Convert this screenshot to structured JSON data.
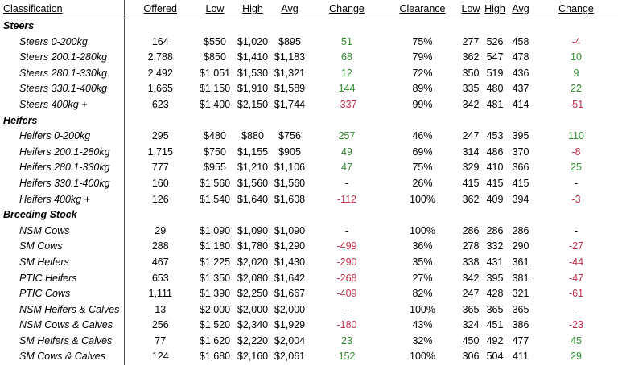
{
  "headers": {
    "classification": "Classification",
    "offered": "Offered",
    "low": "Low",
    "high": "High",
    "avg": "Avg",
    "change": "Change",
    "clearance": "Clearance",
    "low2": "Low",
    "high2": "High",
    "avg2": "Avg",
    "change2": "Change"
  },
  "groups": [
    {
      "name": "Steers",
      "rows": [
        {
          "cls": "Steers 0-200kg",
          "offered": "164",
          "low": "$550",
          "high": "$1,020",
          "avg": "$895",
          "change": "51",
          "change_dir": "up",
          "clearance": "75%",
          "low2": "277",
          "high2": "526",
          "avg2": "458",
          "change2": "-4",
          "change2_dir": "down"
        },
        {
          "cls": "Steers 200.1-280kg",
          "offered": "2,788",
          "low": "$850",
          "high": "$1,410",
          "avg": "$1,183",
          "change": "68",
          "change_dir": "up",
          "clearance": "79%",
          "low2": "362",
          "high2": "547",
          "avg2": "478",
          "change2": "10",
          "change2_dir": "up"
        },
        {
          "cls": "Steers 280.1-330kg",
          "offered": "2,492",
          "low": "$1,051",
          "high": "$1,530",
          "avg": "$1,321",
          "change": "12",
          "change_dir": "up",
          "clearance": "72%",
          "low2": "350",
          "high2": "519",
          "avg2": "436",
          "change2": "9",
          "change2_dir": "up"
        },
        {
          "cls": "Steers 330.1-400kg",
          "offered": "1,665",
          "low": "$1,150",
          "high": "$1,910",
          "avg": "$1,589",
          "change": "144",
          "change_dir": "up",
          "clearance": "89%",
          "low2": "335",
          "high2": "480",
          "avg2": "437",
          "change2": "22",
          "change2_dir": "up"
        },
        {
          "cls": "Steers 400kg +",
          "offered": "623",
          "low": "$1,400",
          "high": "$2,150",
          "avg": "$1,744",
          "change": "-337",
          "change_dir": "down",
          "clearance": "99%",
          "low2": "342",
          "high2": "481",
          "avg2": "414",
          "change2": "-51",
          "change2_dir": "down"
        }
      ]
    },
    {
      "name": "Heifers",
      "rows": [
        {
          "cls": "Heifers 0-200kg",
          "offered": "295",
          "low": "$480",
          "high": "$880",
          "avg": "$756",
          "change": "257",
          "change_dir": "up",
          "clearance": "46%",
          "low2": "247",
          "high2": "453",
          "avg2": "395",
          "change2": "110",
          "change2_dir": "up"
        },
        {
          "cls": "Heifers 200.1-280kg",
          "offered": "1,715",
          "low": "$750",
          "high": "$1,155",
          "avg": "$905",
          "change": "49",
          "change_dir": "up",
          "clearance": "69%",
          "low2": "314",
          "high2": "486",
          "avg2": "370",
          "change2": "-8",
          "change2_dir": "down"
        },
        {
          "cls": "Heifers 280.1-330kg",
          "offered": "777",
          "low": "$955",
          "high": "$1,210",
          "avg": "$1,106",
          "change": "47",
          "change_dir": "up",
          "clearance": "75%",
          "low2": "329",
          "high2": "410",
          "avg2": "366",
          "change2": "25",
          "change2_dir": "up"
        },
        {
          "cls": "Heifers 330.1-400kg",
          "offered": "160",
          "low": "$1,560",
          "high": "$1,560",
          "avg": "$1,560",
          "change": "-",
          "change_dir": "none",
          "clearance": "26%",
          "low2": "415",
          "high2": "415",
          "avg2": "415",
          "change2": "-",
          "change2_dir": "none"
        },
        {
          "cls": "Heifers 400kg +",
          "offered": "126",
          "low": "$1,540",
          "high": "$1,640",
          "avg": "$1,608",
          "change": "-112",
          "change_dir": "down",
          "clearance": "100%",
          "low2": "362",
          "high2": "409",
          "avg2": "394",
          "change2": "-3",
          "change2_dir": "down"
        }
      ]
    },
    {
      "name": "Breeding Stock",
      "rows": [
        {
          "cls": "NSM Cows",
          "offered": "29",
          "low": "$1,090",
          "high": "$1,090",
          "avg": "$1,090",
          "change": "-",
          "change_dir": "none",
          "clearance": "100%",
          "low2": "286",
          "high2": "286",
          "avg2": "286",
          "change2": "-",
          "change2_dir": "none"
        },
        {
          "cls": "SM Cows",
          "offered": "288",
          "low": "$1,180",
          "high": "$1,780",
          "avg": "$1,290",
          "change": "-499",
          "change_dir": "down",
          "clearance": "36%",
          "low2": "278",
          "high2": "332",
          "avg2": "290",
          "change2": "-27",
          "change2_dir": "down"
        },
        {
          "cls": "SM Heifers",
          "offered": "467",
          "low": "$1,225",
          "high": "$2,020",
          "avg": "$1,430",
          "change": "-290",
          "change_dir": "down",
          "clearance": "35%",
          "low2": "338",
          "high2": "431",
          "avg2": "361",
          "change2": "-44",
          "change2_dir": "down"
        },
        {
          "cls": "PTIC Heifers",
          "offered": "653",
          "low": "$1,350",
          "high": "$2,080",
          "avg": "$1,642",
          "change": "-268",
          "change_dir": "down",
          "clearance": "27%",
          "low2": "342",
          "high2": "395",
          "avg2": "381",
          "change2": "-47",
          "change2_dir": "down"
        },
        {
          "cls": "PTIC Cows",
          "offered": "1,111",
          "low": "$1,390",
          "high": "$2,250",
          "avg": "$1,667",
          "change": "-409",
          "change_dir": "down",
          "clearance": "82%",
          "low2": "247",
          "high2": "428",
          "avg2": "321",
          "change2": "-61",
          "change2_dir": "down"
        },
        {
          "cls": "NSM Heifers & Calves",
          "offered": "13",
          "low": "$2,000",
          "high": "$2,000",
          "avg": "$2,000",
          "change": "-",
          "change_dir": "none",
          "clearance": "100%",
          "low2": "365",
          "high2": "365",
          "avg2": "365",
          "change2": "-",
          "change2_dir": "none"
        },
        {
          "cls": "NSM Cows & Calves",
          "offered": "256",
          "low": "$1,520",
          "high": "$2,340",
          "avg": "$1,929",
          "change": "-180",
          "change_dir": "down",
          "clearance": "43%",
          "low2": "324",
          "high2": "451",
          "avg2": "386",
          "change2": "-23",
          "change2_dir": "down"
        },
        {
          "cls": "SM Heifers & Calves",
          "offered": "77",
          "low": "$1,620",
          "high": "$2,220",
          "avg": "$2,004",
          "change": "23",
          "change_dir": "up",
          "clearance": "32%",
          "low2": "450",
          "high2": "492",
          "avg2": "477",
          "change2": "45",
          "change2_dir": "up"
        },
        {
          "cls": "SM Cows & Calves",
          "offered": "124",
          "low": "$1,680",
          "high": "$2,160",
          "avg": "$2,061",
          "change": "152",
          "change_dir": "up",
          "clearance": "100%",
          "low2": "306",
          "high2": "504",
          "avg2": "411",
          "change2": "29",
          "change2_dir": "up"
        }
      ]
    }
  ],
  "colors": {
    "up": "#2e8b2e",
    "down": "#c0304a",
    "none": "#000000",
    "rule": "#555555"
  }
}
